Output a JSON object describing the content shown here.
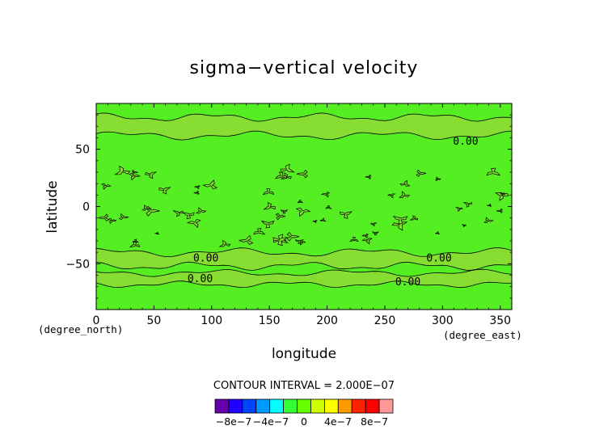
{
  "chart_data": {
    "type": "contour",
    "title": "sigma−vertical velocity",
    "xlabel": "longitude",
    "ylabel": "latitude",
    "x_unit": "(degree_east)",
    "y_unit": "(degree_north)",
    "xlim": [
      0,
      360
    ],
    "ylim": [
      -90,
      90
    ],
    "x_ticks": [
      0,
      50,
      100,
      150,
      200,
      250,
      300,
      350
    ],
    "y_ticks": [
      -50,
      0,
      50
    ],
    "x_tick_labels": [
      "0",
      "50",
      "100",
      "150",
      "200",
      "250",
      "300",
      "350"
    ],
    "y_tick_labels": [
      "−50",
      "0",
      "50"
    ],
    "contour_interval_text": "CONTOUR INTERVAL = 2.000E−07",
    "contour_labels": [
      {
        "text": "0.00",
        "lon": 320,
        "lat": 57
      },
      {
        "text": "0.00",
        "lon": 95,
        "lat": -45
      },
      {
        "text": "0.00",
        "lon": 90,
        "lat": -63
      },
      {
        "text": "0.00",
        "lon": 297,
        "lat": -45
      },
      {
        "text": "0.00",
        "lon": 270,
        "lat": -66
      }
    ],
    "zero_field_color": "#55ee22",
    "positive_region_color": "#88dd33",
    "colorbar": {
      "colors": [
        "#6600aa",
        "#2200ff",
        "#0044ff",
        "#0099ff",
        "#00ffff",
        "#33ff33",
        "#66ff00",
        "#ccff00",
        "#ffff00",
        "#ff9900",
        "#ff2200",
        "#ff0000",
        "#ff9999"
      ],
      "boundaries": [
        -8e-07,
        -6e-07,
        -4e-07,
        -2e-07,
        0,
        2e-07,
        4e-07,
        6e-07,
        8e-07
      ],
      "tick_labels": [
        "−8e−7",
        "−4e−7",
        "0",
        "4e−7",
        "8e−7"
      ]
    }
  }
}
